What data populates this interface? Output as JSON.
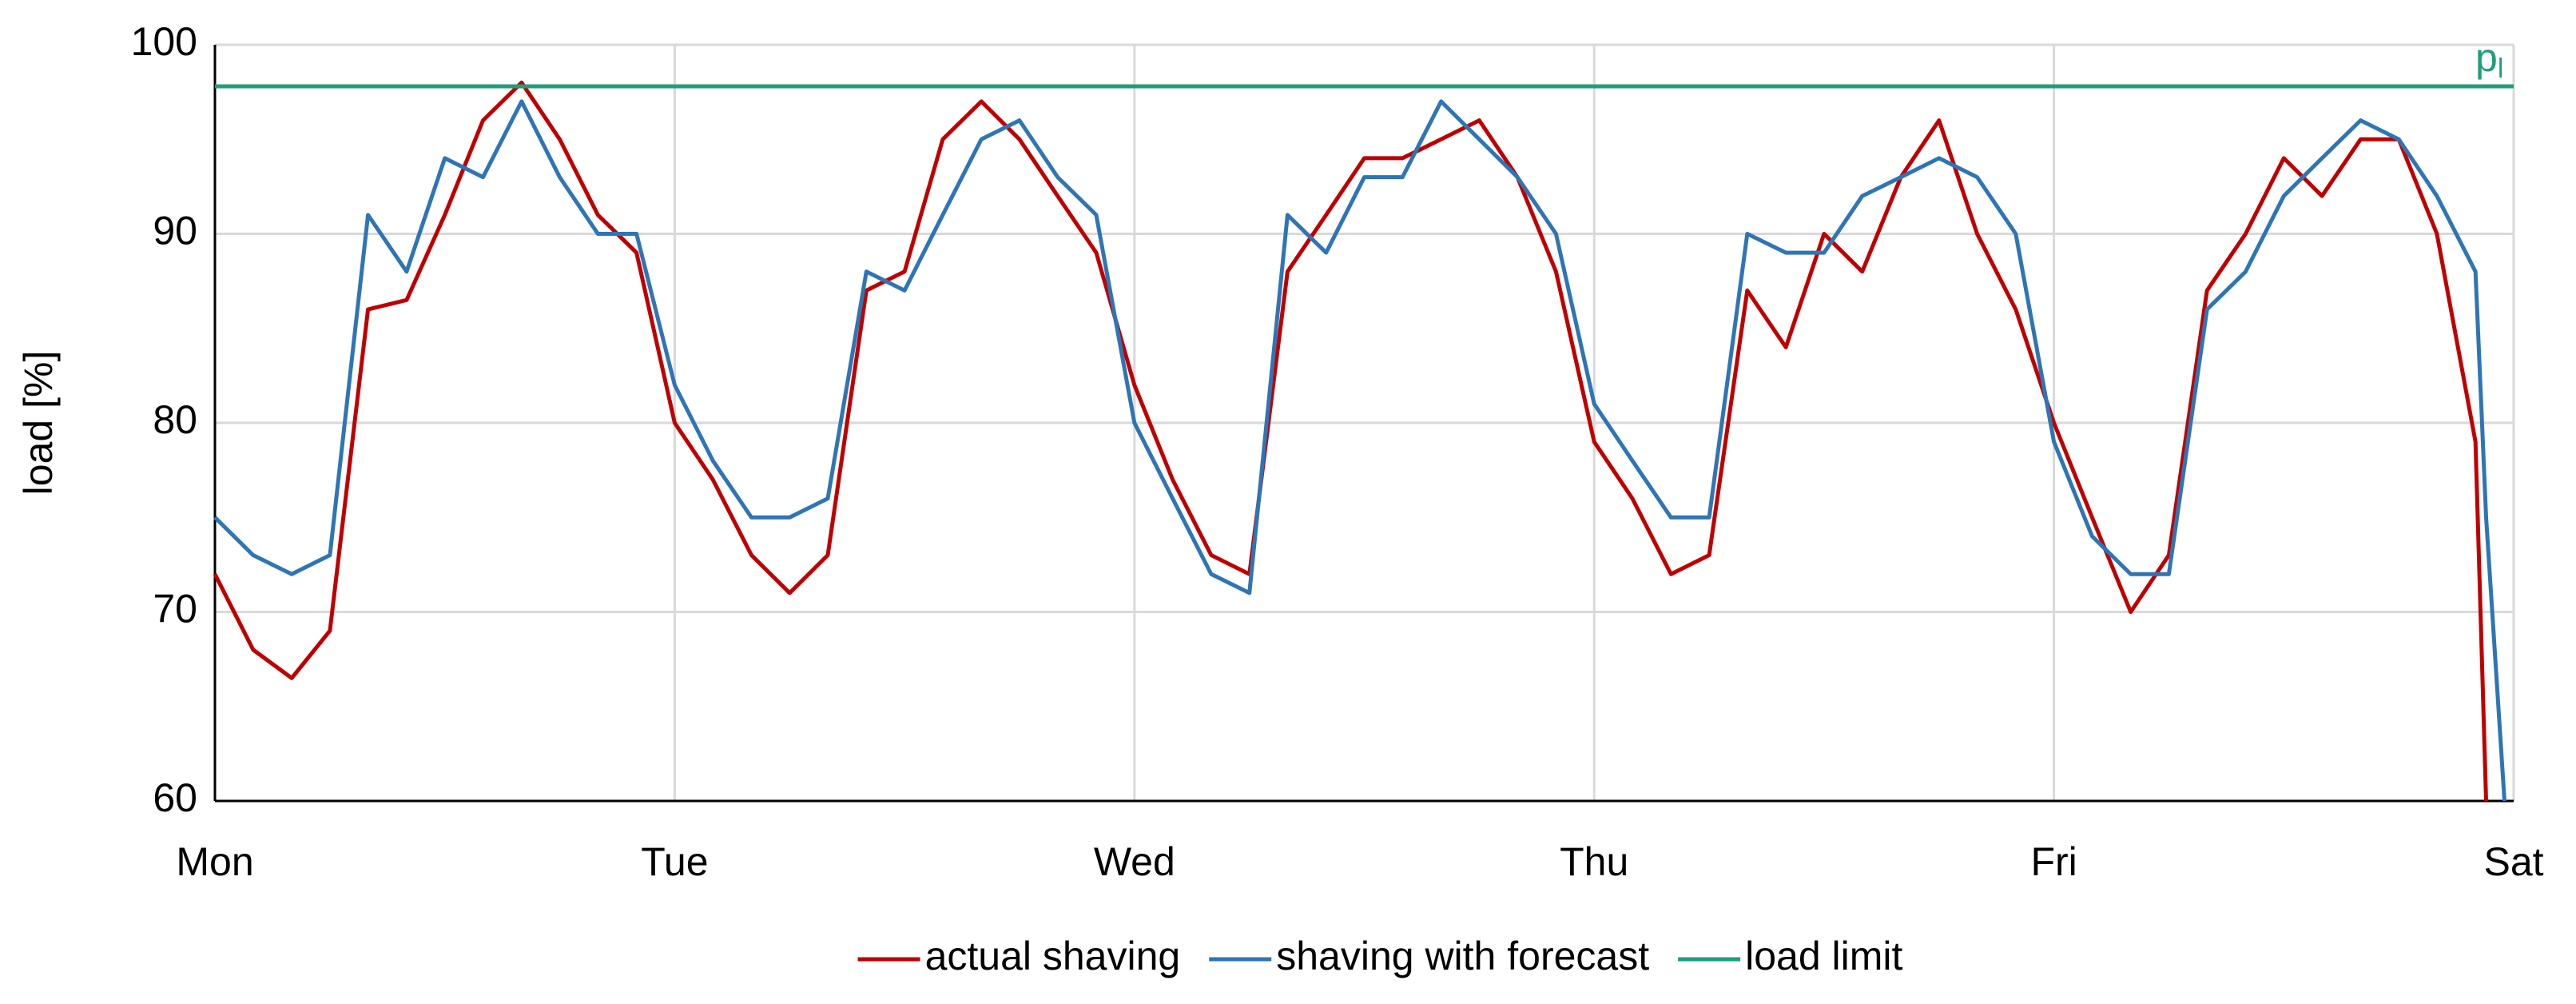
{
  "chart_data": {
    "type": "line",
    "y_label": "load [%]",
    "xlim": [
      0,
      5
    ],
    "xticks": [
      {
        "value": 0,
        "label": "Mon"
      },
      {
        "value": 1,
        "label": "Tue"
      },
      {
        "value": 2,
        "label": "Wed"
      },
      {
        "value": 3,
        "label": "Thu"
      },
      {
        "value": 4,
        "label": "Fri"
      },
      {
        "value": 5,
        "label": "Sat"
      }
    ],
    "ylim": [
      60,
      100
    ],
    "yticks": [
      60,
      70,
      80,
      90,
      100
    ],
    "grid": true,
    "legend": "bottom",
    "series": [
      {
        "name": "actual shaving",
        "color": "#c00000",
        "x": [
          0,
          0.083,
          0.167,
          0.25,
          0.333,
          0.417,
          0.5,
          0.583,
          0.667,
          0.75,
          0.833,
          0.917,
          1,
          1.083,
          1.167,
          1.25,
          1.333,
          1.417,
          1.5,
          1.583,
          1.667,
          1.75,
          1.833,
          1.917,
          2,
          2.083,
          2.167,
          2.25,
          2.333,
          2.417,
          2.5,
          2.583,
          2.667,
          2.75,
          2.833,
          2.917,
          3,
          3.083,
          3.167,
          3.25,
          3.333,
          3.417,
          3.5,
          3.583,
          3.667,
          3.75,
          3.833,
          3.917,
          4,
          4.083,
          4.167,
          4.25,
          4.333,
          4.417,
          4.5,
          4.583,
          4.667,
          4.75,
          4.833,
          4.917,
          4.94
        ],
        "values": [
          72,
          68,
          66.5,
          69,
          86,
          86.5,
          91,
          96,
          98,
          95,
          91,
          89,
          80,
          77,
          73,
          71,
          73,
          87,
          88,
          95,
          97,
          95,
          92,
          89,
          82,
          77,
          73,
          72,
          88,
          91,
          94,
          94,
          95,
          96,
          93,
          88,
          79,
          76,
          72,
          73,
          87,
          84,
          90,
          88,
          93,
          96,
          90,
          86,
          80,
          75,
          70,
          73,
          87,
          90,
          94,
          92,
          95,
          95,
          90,
          79,
          60
        ]
      },
      {
        "name": "shaving with forecast",
        "color": "#2e75b6",
        "x": [
          0,
          0.083,
          0.167,
          0.25,
          0.333,
          0.417,
          0.5,
          0.583,
          0.667,
          0.75,
          0.833,
          0.917,
          1,
          1.083,
          1.167,
          1.25,
          1.333,
          1.417,
          1.5,
          1.583,
          1.667,
          1.75,
          1.833,
          1.917,
          2,
          2.083,
          2.167,
          2.25,
          2.333,
          2.417,
          2.5,
          2.583,
          2.667,
          2.75,
          2.833,
          2.917,
          3,
          3.083,
          3.167,
          3.25,
          3.333,
          3.417,
          3.5,
          3.583,
          3.667,
          3.75,
          3.833,
          3.917,
          4,
          4.083,
          4.167,
          4.25,
          4.333,
          4.417,
          4.5,
          4.583,
          4.667,
          4.75,
          4.833,
          4.917,
          4.94,
          4.98
        ],
        "values": [
          75,
          73,
          72,
          73,
          91,
          88,
          94,
          93,
          97,
          93,
          90,
          90,
          82,
          78,
          75,
          75,
          76,
          88,
          87,
          91,
          95,
          96,
          93,
          91,
          80,
          76,
          72,
          71,
          91,
          89,
          93,
          93,
          97,
          95,
          93,
          90,
          81,
          78,
          75,
          75,
          90,
          89,
          89,
          92,
          93,
          94,
          93,
          90,
          79,
          74,
          72,
          72,
          86,
          88,
          92,
          94,
          96,
          95,
          92,
          88,
          75,
          60
        ]
      }
    ],
    "limit": {
      "name": "load limit",
      "value": 97.8,
      "color": "#1f9e7a",
      "label": "p",
      "label_sub": "l"
    }
  }
}
